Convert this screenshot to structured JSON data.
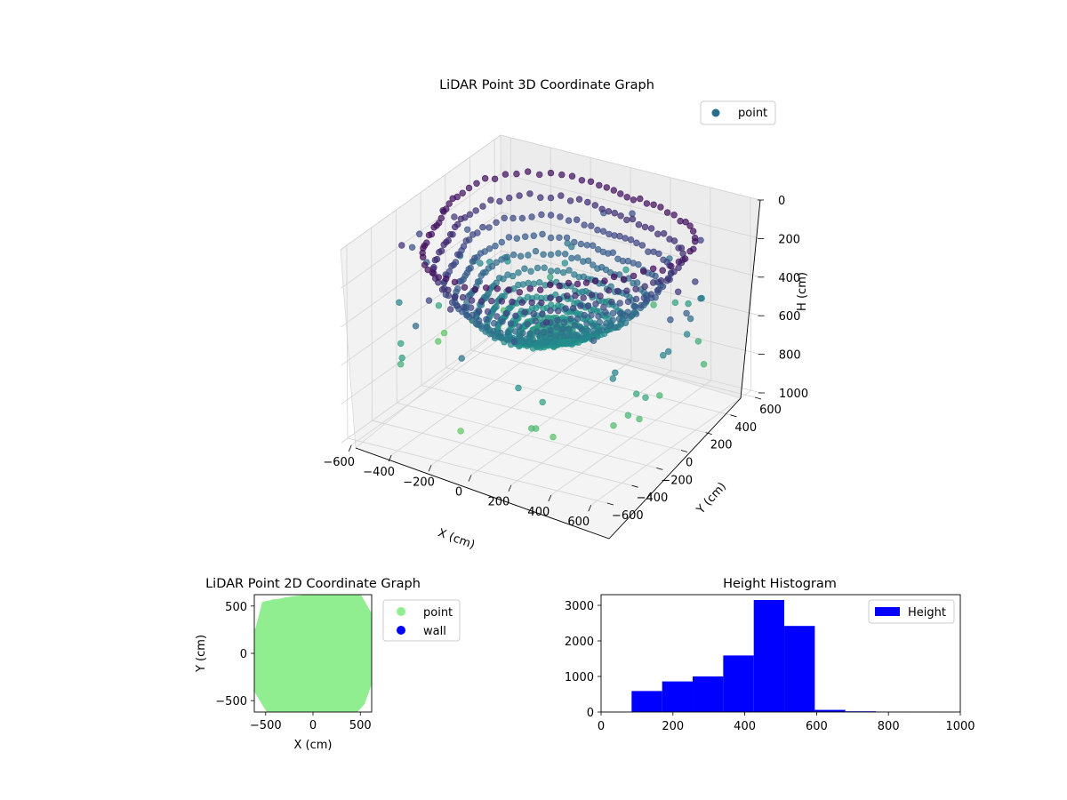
{
  "colors": {
    "viridis_dark": "#440154",
    "viridis_mid": "#21918c",
    "viridis_light": "#5ec962",
    "pane": "#f2f2f2",
    "grid": "#d0d0d0",
    "legend_point_3d": "#2a6e8e",
    "point_2d": "#90ee90",
    "wall_2d": "#0000ff",
    "histogram": "#0000ff"
  },
  "chart_data": [
    {
      "type": "scatter",
      "title": "LiDAR Point 3D Coordinate Graph",
      "xlabel": "X (cm)",
      "ylabel": "Y (cm)",
      "zlabel": "H (cm)",
      "xlim": [
        -650,
        650
      ],
      "ylim": [
        -650,
        650
      ],
      "zlim": [
        1000,
        0
      ],
      "x_ticks": [
        "−600",
        "−400",
        "−200",
        "0",
        "200",
        "400",
        "600"
      ],
      "y_ticks": [
        "−600",
        "−400",
        "−200",
        "0",
        "200",
        "400",
        "600"
      ],
      "z_ticks": [
        "0",
        "200",
        "400",
        "600",
        "800",
        "1000"
      ],
      "legend": [
        "point"
      ],
      "legend_position": "upper right",
      "colormap": "viridis",
      "grid": true,
      "shape": "bowl",
      "rim_height": 50,
      "bowl_bottom_height": 580,
      "max_radius": 640
    },
    {
      "type": "scatter",
      "title": "LiDAR Point 2D Coordinate Graph",
      "xlabel": "X (cm)",
      "ylabel": "Y (cm)",
      "xlim": [
        -620,
        620
      ],
      "ylim": [
        -620,
        620
      ],
      "x_ticks": [
        "−500",
        "0",
        "500"
      ],
      "y_ticks": [
        "−500",
        "0",
        "500"
      ],
      "legend": [
        "point",
        "wall"
      ],
      "legend_position": "outside right"
    },
    {
      "type": "bar",
      "title": "Height Histogram",
      "xlabel": "",
      "ylabel": "",
      "xlim": [
        0,
        1000
      ],
      "ylim": [
        0,
        3300
      ],
      "x_ticks": [
        "0",
        "200",
        "400",
        "600",
        "800",
        "1000"
      ],
      "y_ticks": [
        "0",
        "1000",
        "2000",
        "3000"
      ],
      "legend": [
        "Height"
      ],
      "legend_position": "upper right",
      "bins": [
        {
          "x0": 85,
          "x1": 170,
          "count": 590
        },
        {
          "x0": 170,
          "x1": 255,
          "count": 860
        },
        {
          "x0": 255,
          "x1": 340,
          "count": 1000
        },
        {
          "x0": 340,
          "x1": 425,
          "count": 1590
        },
        {
          "x0": 425,
          "x1": 510,
          "count": 3150
        },
        {
          "x0": 510,
          "x1": 595,
          "count": 2420
        },
        {
          "x0": 595,
          "x1": 680,
          "count": 60
        },
        {
          "x0": 680,
          "x1": 765,
          "count": 20
        },
        {
          "x0": 765,
          "x1": 850,
          "count": 5
        },
        {
          "x0": 850,
          "x1": 935,
          "count": 3
        }
      ]
    }
  ]
}
